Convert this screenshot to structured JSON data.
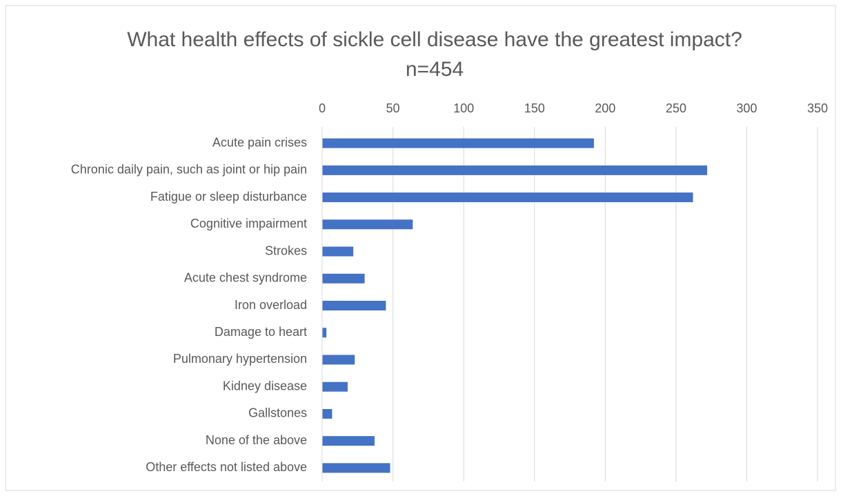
{
  "chart_data": {
    "type": "bar",
    "orientation": "horizontal",
    "title": "What health effects of sickle cell disease have the greatest impact? n=454",
    "categories": [
      "Acute pain crises",
      "Chronic daily pain, such as joint or hip pain",
      "Fatigue or sleep disturbance",
      "Cognitive impairment",
      "Strokes",
      "Acute chest syndrome",
      "Iron overload",
      "Damage to heart",
      "Pulmonary hypertension",
      "Kidney disease",
      "Gallstones",
      "None of the above",
      "Other effects not listed above"
    ],
    "values": [
      192,
      272,
      262,
      64,
      22,
      30,
      45,
      3,
      23,
      18,
      7,
      37,
      48
    ],
    "color": "#4472c4",
    "xlim": [
      0,
      350
    ],
    "xticks": [
      0,
      50,
      100,
      150,
      200,
      250,
      300,
      350
    ],
    "grid": true
  }
}
